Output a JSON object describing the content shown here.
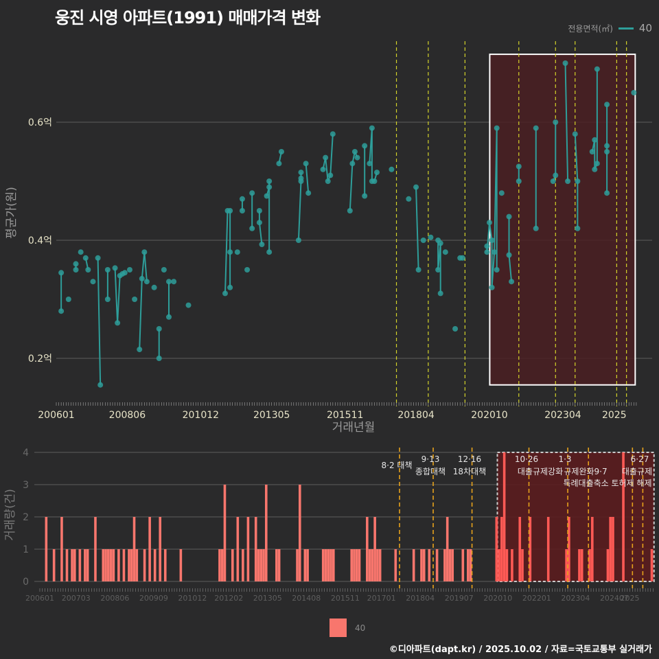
{
  "title": "웅진 시영 아파트(1991) 매매가격 변화",
  "legend_top": {
    "title": "전용면적(㎡)",
    "label": "40",
    "color": "#2e9e9a"
  },
  "legend_bottom": {
    "label": "40",
    "color": "#f8766d"
  },
  "footer": "©디아파트(dapt.kr) / 2025.10.02 / 자료=국토교통부 실거래가",
  "chart_data": [
    {
      "type": "line",
      "title": "웅진 시영 아파트(1991) 매매가격 변화",
      "xlabel": "거래년월",
      "ylabel": "평균가(원)",
      "x_ticks": [
        "200601",
        "200806",
        "201012",
        "201305",
        "201511",
        "201804",
        "202010",
        "202304",
        "2025"
      ],
      "y_ticks": [
        "0.2억",
        "0.4억",
        "0.6억"
      ],
      "ylim": [
        0.13,
        0.72
      ],
      "unit": "억",
      "grid": true,
      "series": [
        {
          "name": "40",
          "color": "#2e9e9a",
          "points": [
            {
              "x": "200603",
              "y": 0.345
            },
            {
              "x": "200603",
              "y": 0.28
            },
            {
              "x": "200606",
              "y": 0.3
            },
            {
              "x": "200609",
              "y": 0.36
            },
            {
              "x": "200609",
              "y": 0.35
            },
            {
              "x": "200611",
              "y": 0.38
            },
            {
              "x": "200701",
              "y": 0.37
            },
            {
              "x": "200702",
              "y": 0.35
            },
            {
              "x": "200704",
              "y": 0.33
            },
            {
              "x": "200706",
              "y": 0.37
            },
            {
              "x": "200707",
              "y": 0.155
            },
            {
              "x": "200710",
              "y": 0.35
            },
            {
              "x": "200710",
              "y": 0.3
            },
            {
              "x": "200801",
              "y": 0.353
            },
            {
              "x": "200802",
              "y": 0.26
            },
            {
              "x": "200803",
              "y": 0.34
            },
            {
              "x": "200804",
              "y": 0.343
            },
            {
              "x": "200805",
              "y": 0.345
            },
            {
              "x": "200807",
              "y": 0.35
            },
            {
              "x": "200809",
              "y": 0.3
            },
            {
              "x": "200811",
              "y": 0.215
            },
            {
              "x": "200812",
              "y": 0.335
            },
            {
              "x": "200901",
              "y": 0.38
            },
            {
              "x": "200902",
              "y": 0.33
            },
            {
              "x": "200905",
              "y": 0.32
            },
            {
              "x": "200907",
              "y": 0.25
            },
            {
              "x": "200907",
              "y": 0.2
            },
            {
              "x": "200909",
              "y": 0.35
            },
            {
              "x": "200911",
              "y": 0.27
            },
            {
              "x": "200911",
              "y": 0.33
            },
            {
              "x": "201001",
              "y": 0.33
            },
            {
              "x": "201007",
              "y": 0.29
            },
            {
              "x": "201110",
              "y": 0.31
            },
            {
              "x": "201111",
              "y": 0.45
            },
            {
              "x": "201112",
              "y": 0.45
            },
            {
              "x": "201112",
              "y": 0.38
            },
            {
              "x": "201112",
              "y": 0.32
            },
            {
              "x": "201203",
              "y": 0.38
            },
            {
              "x": "201205",
              "y": 0.47
            },
            {
              "x": "201205",
              "y": 0.45
            },
            {
              "x": "201207",
              "y": 0.35
            },
            {
              "x": "201209",
              "y": 0.48
            },
            {
              "x": "201209",
              "y": 0.42
            },
            {
              "x": "201212",
              "y": 0.45
            },
            {
              "x": "201212",
              "y": 0.43
            },
            {
              "x": "201301",
              "y": 0.393
            },
            {
              "x": "201303",
              "y": 0.475
            },
            {
              "x": "201304",
              "y": 0.49
            },
            {
              "x": "201304",
              "y": 0.5
            },
            {
              "x": "201304",
              "y": 0.38
            },
            {
              "x": "201308",
              "y": 0.53
            },
            {
              "x": "201309",
              "y": 0.55
            },
            {
              "x": "201404",
              "y": 0.4
            },
            {
              "x": "201405",
              "y": 0.5
            },
            {
              "x": "201405",
              "y": 0.505
            },
            {
              "x": "201405",
              "y": 0.515
            },
            {
              "x": "201407",
              "y": 0.53
            },
            {
              "x": "201408",
              "y": 0.48
            },
            {
              "x": "201502",
              "y": 0.52
            },
            {
              "x": "201503",
              "y": 0.54
            },
            {
              "x": "201504",
              "y": 0.5
            },
            {
              "x": "201505",
              "y": 0.51
            },
            {
              "x": "201506",
              "y": 0.58
            },
            {
              "x": "201601",
              "y": 0.45
            },
            {
              "x": "201602",
              "y": 0.53
            },
            {
              "x": "201603",
              "y": 0.55
            },
            {
              "x": "201604",
              "y": 0.54
            },
            {
              "x": "201607",
              "y": 0.56
            },
            {
              "x": "201607",
              "y": 0.475
            },
            {
              "x": "201609",
              "y": 0.53
            },
            {
              "x": "201610",
              "y": 0.59
            },
            {
              "x": "201610",
              "y": 0.5
            },
            {
              "x": "201611",
              "y": 0.5
            },
            {
              "x": "201612",
              "y": 0.515
            },
            {
              "x": "201706",
              "y": 0.52
            },
            {
              "x": "201801",
              "y": 0.47
            },
            {
              "x": "201804",
              "y": 0.49
            },
            {
              "x": "201805",
              "y": 0.35
            },
            {
              "x": "201807",
              "y": 0.4
            },
            {
              "x": "201810",
              "y": 0.405
            },
            {
              "x": "201901",
              "y": 0.4
            },
            {
              "x": "201901",
              "y": 0.35
            },
            {
              "x": "201902",
              "y": 0.395
            },
            {
              "x": "201902",
              "y": 0.31
            },
            {
              "x": "201904",
              "y": 0.38
            },
            {
              "x": "201908",
              "y": 0.25
            },
            {
              "x": "201910",
              "y": 0.37
            },
            {
              "x": "201911",
              "y": 0.37
            },
            {
              "x": "202009",
              "y": 0.39
            },
            {
              "x": "202009",
              "y": 0.38
            },
            {
              "x": "202010",
              "y": 0.43
            },
            {
              "x": "202011",
              "y": 0.4
            },
            {
              "x": "202011",
              "y": 0.32
            },
            {
              "x": "202012",
              "y": 0.38
            },
            {
              "x": "202101",
              "y": 0.59
            },
            {
              "x": "202101",
              "y": 0.35
            },
            {
              "x": "202103",
              "y": 0.48
            },
            {
              "x": "202106",
              "y": 0.44
            },
            {
              "x": "202106",
              "y": 0.375
            },
            {
              "x": "202107",
              "y": 0.33
            },
            {
              "x": "202110",
              "y": 0.525
            },
            {
              "x": "202110",
              "y": 0.5
            },
            {
              "x": "202205",
              "y": 0.59
            },
            {
              "x": "202205",
              "y": 0.42
            },
            {
              "x": "202212",
              "y": 0.5
            },
            {
              "x": "202301",
              "y": 0.51
            },
            {
              "x": "202301",
              "y": 0.6
            },
            {
              "x": "202305",
              "y": 0.7
            },
            {
              "x": "202306",
              "y": 0.5
            },
            {
              "x": "202309",
              "y": 0.58
            },
            {
              "x": "202310",
              "y": 0.5
            },
            {
              "x": "202310",
              "y": 0.42
            },
            {
              "x": "202404",
              "y": 0.55
            },
            {
              "x": "202405",
              "y": 0.57
            },
            {
              "x": "202405",
              "y": 0.52
            },
            {
              "x": "202406",
              "y": 0.53
            },
            {
              "x": "202406",
              "y": 0.69
            },
            {
              "x": "202410",
              "y": 0.63
            },
            {
              "x": "202410",
              "y": 0.56
            },
            {
              "x": "202410",
              "y": 0.55
            },
            {
              "x": "202410",
              "y": 0.48
            },
            {
              "x": "202509",
              "y": 0.65
            }
          ]
        }
      ],
      "vlines": [
        "201708",
        "201809",
        "201912",
        "202110",
        "202301",
        "202309",
        "202502",
        "202506"
      ],
      "highlight_box": {
        "x_start": "202009",
        "x_end": "202509",
        "y_start": 0.155,
        "y_end": 0.715
      }
    },
    {
      "type": "bar",
      "xlabel": "",
      "ylabel": "거래량(건)",
      "x_ticks": [
        "200601",
        "200703",
        "200806",
        "200909",
        "201012",
        "201202",
        "201305",
        "201408",
        "201511",
        "201701",
        "201804",
        "201907",
        "202010",
        "202201",
        "202304",
        "202407",
        "2025"
      ],
      "y_ticks": [
        0,
        1,
        2,
        3,
        4
      ],
      "ylim": [
        0,
        4
      ],
      "grid": true,
      "series": [
        {
          "name": "40",
          "color": "#f8766d"
        }
      ],
      "annotations": [
        {
          "x": "201708",
          "label": "8·2 대책"
        },
        {
          "x": "201809",
          "label": "9·13 종합대책"
        },
        {
          "x": "201912",
          "label": "12·16 18차대책"
        },
        {
          "x": "202110",
          "label": "10·26 대출규제강화"
        },
        {
          "x": "202301",
          "label": "1·3 규제완화"
        },
        {
          "x": "202309",
          "label": "9·7 특례대출축소"
        },
        {
          "x": "202502",
          "label": "토허제 해제"
        },
        {
          "x": "202506",
          "label": "6·27 대출규제"
        }
      ],
      "bars": [
        {
          "x": "200603",
          "y": 2
        },
        {
          "x": "200606",
          "y": 1
        },
        {
          "x": "200609",
          "y": 2
        },
        {
          "x": "200611",
          "y": 1
        },
        {
          "x": "200701",
          "y": 1
        },
        {
          "x": "200702",
          "y": 1
        },
        {
          "x": "200704",
          "y": 1
        },
        {
          "x": "200706",
          "y": 1
        },
        {
          "x": "200707",
          "y": 1
        },
        {
          "x": "200710",
          "y": 2
        },
        {
          "x": "200801",
          "y": 1
        },
        {
          "x": "200802",
          "y": 1
        },
        {
          "x": "200803",
          "y": 1
        },
        {
          "x": "200804",
          "y": 1
        },
        {
          "x": "200805",
          "y": 1
        },
        {
          "x": "200807",
          "y": 1
        },
        {
          "x": "200809",
          "y": 1
        },
        {
          "x": "200811",
          "y": 1
        },
        {
          "x": "200812",
          "y": 1
        },
        {
          "x": "200901",
          "y": 2
        },
        {
          "x": "200902",
          "y": 1
        },
        {
          "x": "200905",
          "y": 1
        },
        {
          "x": "200907",
          "y": 2
        },
        {
          "x": "200909",
          "y": 1
        },
        {
          "x": "200911",
          "y": 2
        },
        {
          "x": "201001",
          "y": 1
        },
        {
          "x": "201007",
          "y": 1
        },
        {
          "x": "201110",
          "y": 1
        },
        {
          "x": "201111",
          "y": 1
        },
        {
          "x": "201112",
          "y": 3
        },
        {
          "x": "201203",
          "y": 1
        },
        {
          "x": "201205",
          "y": 2
        },
        {
          "x": "201207",
          "y": 1
        },
        {
          "x": "201209",
          "y": 2
        },
        {
          "x": "201212",
          "y": 2
        },
        {
          "x": "201301",
          "y": 1
        },
        {
          "x": "201302",
          "y": 1
        },
        {
          "x": "201303",
          "y": 1
        },
        {
          "x": "201304",
          "y": 3
        },
        {
          "x": "201308",
          "y": 1
        },
        {
          "x": "201309",
          "y": 1
        },
        {
          "x": "201404",
          "y": 1
        },
        {
          "x": "201405",
          "y": 3
        },
        {
          "x": "201407",
          "y": 1
        },
        {
          "x": "201408",
          "y": 1
        },
        {
          "x": "201502",
          "y": 1
        },
        {
          "x": "201503",
          "y": 1
        },
        {
          "x": "201504",
          "y": 1
        },
        {
          "x": "201505",
          "y": 1
        },
        {
          "x": "201506",
          "y": 1
        },
        {
          "x": "201601",
          "y": 1
        },
        {
          "x": "201602",
          "y": 1
        },
        {
          "x": "201603",
          "y": 1
        },
        {
          "x": "201604",
          "y": 1
        },
        {
          "x": "201607",
          "y": 2
        },
        {
          "x": "201608",
          "y": 1
        },
        {
          "x": "201609",
          "y": 1
        },
        {
          "x": "201610",
          "y": 2
        },
        {
          "x": "201611",
          "y": 1
        },
        {
          "x": "201612",
          "y": 1
        },
        {
          "x": "201706",
          "y": 1
        },
        {
          "x": "201801",
          "y": 1
        },
        {
          "x": "201804",
          "y": 1
        },
        {
          "x": "201805",
          "y": 1
        },
        {
          "x": "201807",
          "y": 1
        },
        {
          "x": "201810",
          "y": 1
        },
        {
          "x": "201901",
          "y": 1
        },
        {
          "x": "201902",
          "y": 2
        },
        {
          "x": "201903",
          "y": 1
        },
        {
          "x": "201904",
          "y": 1
        },
        {
          "x": "201908",
          "y": 1
        },
        {
          "x": "201910",
          "y": 1
        },
        {
          "x": "201911",
          "y": 1
        },
        {
          "x": "202009",
          "y": 2
        },
        {
          "x": "202010",
          "y": 1
        },
        {
          "x": "202011",
          "y": 2
        },
        {
          "x": "202012",
          "y": 4
        },
        {
          "x": "202101",
          "y": 1
        },
        {
          "x": "202103",
          "y": 1
        },
        {
          "x": "202106",
          "y": 2
        },
        {
          "x": "202107",
          "y": 1
        },
        {
          "x": "202110",
          "y": 2
        },
        {
          "x": "202205",
          "y": 2
        },
        {
          "x": "202212",
          "y": 1
        },
        {
          "x": "202301",
          "y": 2
        },
        {
          "x": "202305",
          "y": 1
        },
        {
          "x": "202306",
          "y": 1
        },
        {
          "x": "202309",
          "y": 1
        },
        {
          "x": "202310",
          "y": 2
        },
        {
          "x": "202404",
          "y": 1
        },
        {
          "x": "202405",
          "y": 2
        },
        {
          "x": "202406",
          "y": 2
        },
        {
          "x": "202410",
          "y": 4
        },
        {
          "x": "202509",
          "y": 1
        }
      ],
      "highlight_box": {
        "x_start": "202009",
        "x_end": "202509",
        "y_start": 0,
        "y_end": 4
      }
    }
  ]
}
